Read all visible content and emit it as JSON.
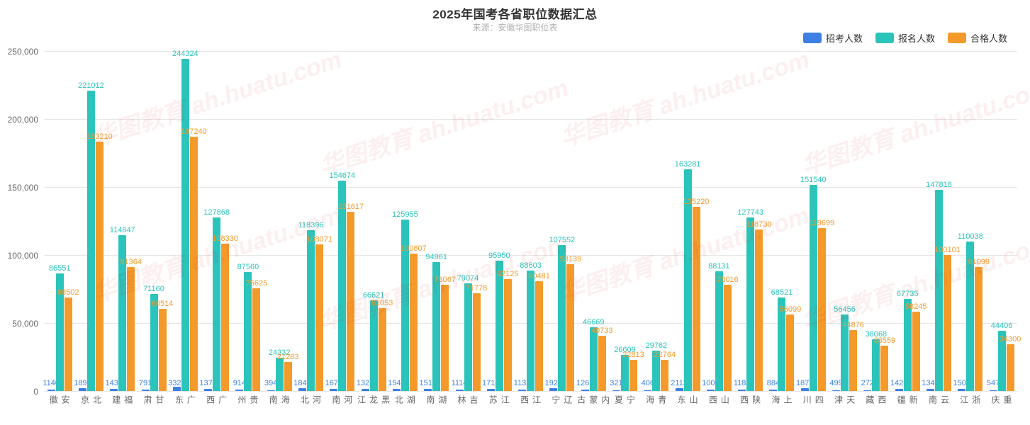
{
  "title": "2025年国考各省职位数据汇总",
  "subtitle": "来源：安徽华图职位表",
  "watermark_text": "华图教育 ah.huatu.com",
  "legend": [
    {
      "label": "招考人数",
      "color": "#3d7fe3"
    },
    {
      "label": "报名人数",
      "color": "#2bc4bb"
    },
    {
      "label": "合格人数",
      "color": "#f39a2b"
    }
  ],
  "colors": {
    "series1": "#3d7fe3",
    "series2": "#2bc4bb",
    "series3": "#f39a2b",
    "grid": "#e6e6e6",
    "axis_text": "#666666",
    "title": "#333333",
    "subtitle": "#b0b0b0",
    "background": "#ffffff"
  },
  "y_axis": {
    "min": 0,
    "max": 250000,
    "ticks": [
      0,
      50000,
      100000,
      150000,
      200000,
      250000
    ],
    "tick_labels": [
      "0",
      "50,000",
      "100,000",
      "150,000",
      "200,000",
      "250,000"
    ]
  },
  "fontsize": {
    "title": 17,
    "subtitle": 12,
    "legend": 13,
    "axis": 12,
    "bar_label": 11
  },
  "categories": [
    "安徽",
    "北京",
    "福建",
    "甘肃",
    "广东",
    "广西",
    "贵州",
    "海南",
    "河北",
    "河南",
    "黑龙江",
    "湖北",
    "湖南",
    "吉林",
    "江苏",
    "江西",
    "辽宁",
    "内蒙古",
    "宁夏",
    "青海",
    "山东",
    "山西",
    "陕西",
    "上海",
    "四川",
    "天津",
    "西藏",
    "新疆",
    "云南",
    "浙江",
    "重庆"
  ],
  "series": [
    {
      "name": "招考人数",
      "color": "#3d7fe3",
      "values": [
        1140,
        1898,
        1433,
        791,
        3328,
        1378,
        914,
        394,
        1846,
        1678,
        1325,
        1543,
        1513,
        1114,
        1718,
        1135,
        1928,
        1263,
        321,
        406,
        2113,
        1003,
        1185,
        884,
        1875,
        499,
        272,
        1428,
        1343,
        1504,
        547
      ]
    },
    {
      "name": "报名人数",
      "color": "#2bc4bb",
      "values": [
        86551,
        221012,
        114847,
        71160,
        244324,
        127868,
        87560,
        24332,
        118396,
        154674,
        66621,
        125955,
        94961,
        79074,
        95950,
        88603,
        107552,
        46669,
        26609,
        29762,
        163281,
        88131,
        127743,
        68521,
        151540,
        56456,
        38068,
        67735,
        147818,
        110038,
        44406
      ]
    },
    {
      "name": "合格人数",
      "color": "#f39a2b",
      "values": [
        68502,
        183210,
        91364,
        60514,
        187240,
        108330,
        75625,
        21283,
        108071,
        131617,
        61053,
        100807,
        78067,
        71778,
        82125,
        80481,
        93139,
        40733,
        22813,
        22764,
        135220,
        78016,
        118730,
        56099,
        119699,
        44876,
        33559,
        58245,
        100101,
        91099,
        34300
      ]
    }
  ]
}
